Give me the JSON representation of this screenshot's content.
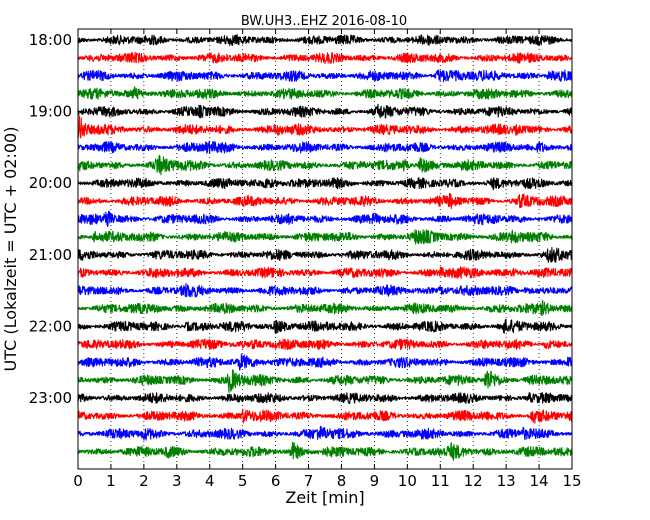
{
  "chart_data": {
    "type": "line",
    "title": "BW.UH3..EHZ 2016-08-10",
    "xlabel": "Zeit  [min]",
    "ylabel": "UTC (Lokalzeit = UTC + 02:00)",
    "xlim": [
      0,
      15
    ],
    "x_ticks": [
      "0",
      "1",
      "2",
      "3",
      "4",
      "5",
      "6",
      "7",
      "8",
      "9",
      "10",
      "11",
      "12",
      "13",
      "14",
      "15"
    ],
    "y_ticks": [
      {
        "row": 0,
        "label": "18:00"
      },
      {
        "row": 4,
        "label": "19:00"
      },
      {
        "row": 8,
        "label": "20:00"
      },
      {
        "row": 12,
        "label": "21:00"
      },
      {
        "row": 16,
        "label": "22:00"
      },
      {
        "row": 20,
        "label": "23:00"
      }
    ],
    "grid": "vertical-dotted",
    "colors": [
      "#000000",
      "#ff0000",
      "#0000ff",
      "#008000"
    ],
    "rows": [
      {
        "start": "18:00",
        "events": []
      },
      {
        "start": "18:15",
        "events": []
      },
      {
        "start": "18:30",
        "events": [
          {
            "t": 10.9,
            "amp": 0.9,
            "dur": 0.5
          },
          {
            "t": 14.3,
            "amp": 0.7,
            "dur": 0.3
          }
        ]
      },
      {
        "start": "18:45",
        "events": [
          {
            "t": 1.7,
            "amp": 0.7,
            "dur": 0.3
          }
        ]
      },
      {
        "start": "19:00",
        "events": [
          {
            "t": 3.7,
            "amp": 0.6,
            "dur": 0.2
          },
          {
            "t": 9.1,
            "amp": 0.6,
            "dur": 0.3
          }
        ]
      },
      {
        "start": "19:15",
        "events": [
          {
            "t": 0.05,
            "amp": 2.2,
            "dur": 0.15
          },
          {
            "t": 6.0,
            "amp": 0.6,
            "dur": 0.3
          },
          {
            "t": 13.3,
            "amp": 0.6,
            "dur": 0.3
          }
        ]
      },
      {
        "start": "19:30",
        "events": [
          {
            "t": 3.9,
            "amp": 0.6,
            "dur": 0.3
          },
          {
            "t": 14.0,
            "amp": 0.6,
            "dur": 0.3
          }
        ]
      },
      {
        "start": "19:45",
        "events": [
          {
            "t": 2.4,
            "amp": 1.2,
            "dur": 0.4
          },
          {
            "t": 10.4,
            "amp": 1.6,
            "dur": 0.2
          },
          {
            "t": 9.9,
            "amp": 1.0,
            "dur": 0.1
          }
        ]
      },
      {
        "start": "20:00",
        "events": [
          {
            "t": 5.7,
            "amp": 0.7,
            "dur": 0.5
          },
          {
            "t": 12.6,
            "amp": 0.5,
            "dur": 0.2
          }
        ]
      },
      {
        "start": "20:15",
        "events": [
          {
            "t": 13.4,
            "amp": 0.8,
            "dur": 0.3
          },
          {
            "t": 11.3,
            "amp": 0.7,
            "dur": 0.1
          }
        ]
      },
      {
        "start": "20:30",
        "events": [
          {
            "t": 0.85,
            "amp": 2.0,
            "dur": 0.12
          },
          {
            "t": 9.0,
            "amp": 0.6,
            "dur": 0.1
          },
          {
            "t": 12.6,
            "amp": 0.6,
            "dur": 0.1
          }
        ]
      },
      {
        "start": "20:45",
        "events": [
          {
            "t": 0.5,
            "amp": 0.8,
            "dur": 0.3
          },
          {
            "t": 10.2,
            "amp": 0.6,
            "dur": 0.5
          },
          {
            "t": 13.2,
            "amp": 0.8,
            "dur": 0.2
          }
        ]
      },
      {
        "start": "21:00",
        "events": [
          {
            "t": 14.3,
            "amp": 0.8,
            "dur": 0.5
          }
        ]
      },
      {
        "start": "21:15",
        "events": [
          {
            "t": 11.0,
            "amp": 0.6,
            "dur": 0.4
          },
          {
            "t": 13.2,
            "amp": 0.5,
            "dur": 0.3
          }
        ]
      },
      {
        "start": "21:30",
        "events": [
          {
            "t": 3.2,
            "amp": 0.6,
            "dur": 0.3
          },
          {
            "t": 11.0,
            "amp": 0.7,
            "dur": 0.3
          },
          {
            "t": 13.6,
            "amp": 0.6,
            "dur": 0.2
          }
        ]
      },
      {
        "start": "21:45",
        "events": [
          {
            "t": 14.1,
            "amp": 0.8,
            "dur": 0.4
          },
          {
            "t": 2.3,
            "amp": 0.5,
            "dur": 0.3
          }
        ]
      },
      {
        "start": "22:00",
        "events": [
          {
            "t": 3.3,
            "amp": 0.6,
            "dur": 0.2
          },
          {
            "t": 6.0,
            "amp": 0.8,
            "dur": 0.5
          },
          {
            "t": 12.9,
            "amp": 0.7,
            "dur": 0.3
          }
        ]
      },
      {
        "start": "22:15",
        "events": [
          {
            "t": 5.3,
            "amp": 0.6,
            "dur": 0.5
          },
          {
            "t": 14.2,
            "amp": 0.6,
            "dur": 0.2
          }
        ]
      },
      {
        "start": "22:30",
        "events": [
          {
            "t": 4.9,
            "amp": 1.0,
            "dur": 0.5
          },
          {
            "t": 14.9,
            "amp": 1.0,
            "dur": 0.2
          }
        ]
      },
      {
        "start": "22:45",
        "events": [
          {
            "t": 4.6,
            "amp": 2.0,
            "dur": 0.25
          },
          {
            "t": 12.4,
            "amp": 2.0,
            "dur": 0.25
          }
        ]
      },
      {
        "start": "23:00",
        "events": [
          {
            "t": 13.7,
            "amp": 0.6,
            "dur": 0.1
          }
        ]
      },
      {
        "start": "23:15",
        "events": [
          {
            "t": 5.0,
            "amp": 1.0,
            "dur": 0.3
          },
          {
            "t": 13.8,
            "amp": 0.9,
            "dur": 0.3
          },
          {
            "t": 12.3,
            "amp": 0.6,
            "dur": 0.2
          }
        ]
      },
      {
        "start": "23:30",
        "events": [
          {
            "t": 7.3,
            "amp": 0.7,
            "dur": 0.5
          },
          {
            "t": 13.5,
            "amp": 0.6,
            "dur": 0.3
          },
          {
            "t": 2.0,
            "amp": 0.5,
            "dur": 0.3
          }
        ]
      },
      {
        "start": "23:45",
        "events": [
          {
            "t": 6.5,
            "amp": 1.4,
            "dur": 0.25
          },
          {
            "t": 11.3,
            "amp": 0.7,
            "dur": 0.5
          },
          {
            "t": 2.7,
            "amp": 0.5,
            "dur": 0.3
          }
        ]
      }
    ]
  }
}
